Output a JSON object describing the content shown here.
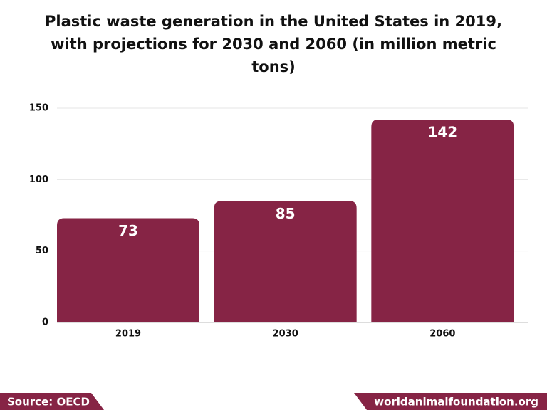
{
  "chart_data": {
    "type": "bar",
    "title": "Plastic waste generation in the United States in 2019, with projections for 2030 and 2060 (in million metric tons)",
    "categories": [
      "2019",
      "2030",
      "2060"
    ],
    "values": [
      73,
      85,
      142
    ],
    "color": "#862445",
    "ylim": [
      0,
      150
    ],
    "yticks": [
      0,
      50,
      100,
      150
    ],
    "grid": true,
    "source": "Source: OECD",
    "website": "worldanimalfoundation.org"
  }
}
